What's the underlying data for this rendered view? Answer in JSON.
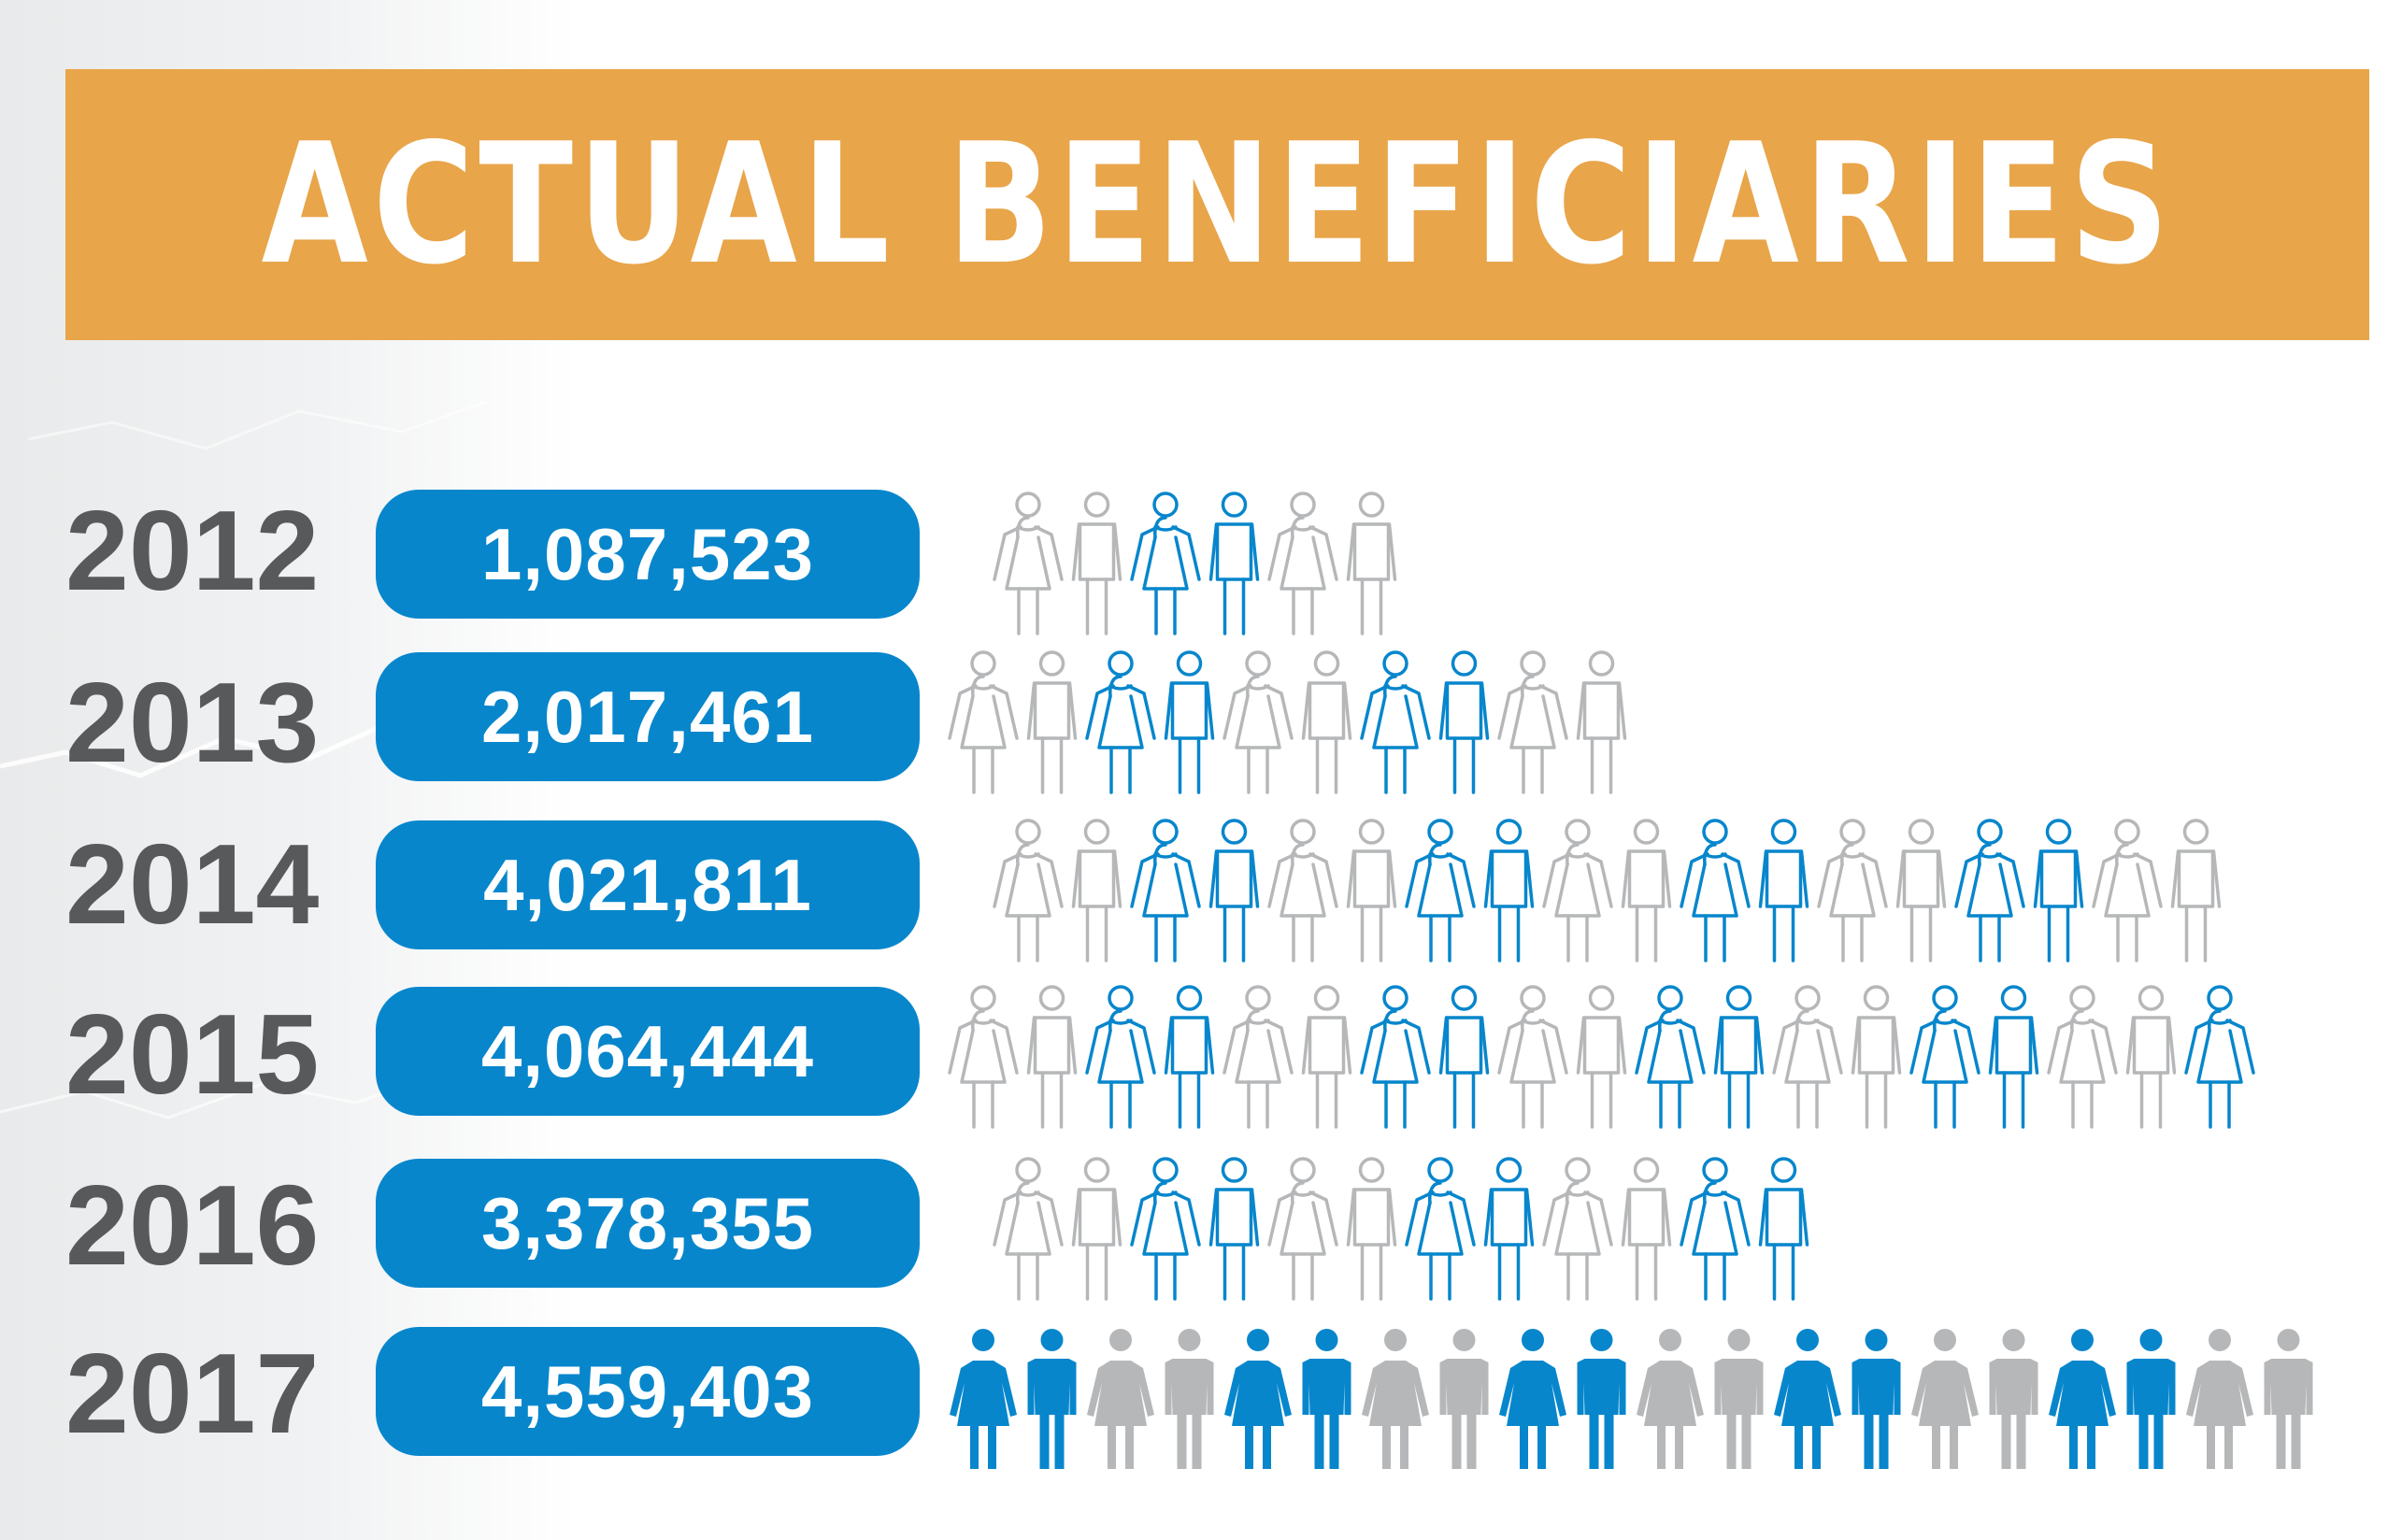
{
  "title": "ACTUAL BENEFICIARIES",
  "colors": {
    "banner": "#e8a54a",
    "accent_blue": "#0786cc",
    "icon_gray": "#b6b7b9",
    "year_text": "#58595b"
  },
  "rows": [
    {
      "year": "2012",
      "value": "1,087,523"
    },
    {
      "year": "2013",
      "value": "2,017,461"
    },
    {
      "year": "2014",
      "value": "4,021,811"
    },
    {
      "year": "2015",
      "value": "4,064,444"
    },
    {
      "year": "2016",
      "value": "3,378,355"
    },
    {
      "year": "2017",
      "value": "4,559,403"
    }
  ],
  "chart_data": {
    "type": "bar",
    "title": "ACTUAL BENEFICIARIES",
    "categories": [
      "2012",
      "2013",
      "2014",
      "2015",
      "2016",
      "2017"
    ],
    "values": [
      1087523,
      2017461,
      4021811,
      4064444,
      3378355,
      4559403
    ],
    "icons_per_row": [
      6,
      10,
      18,
      19,
      12,
      20
    ],
    "icon_color_pattern": [
      [
        "gray",
        "gray",
        "blue",
        "blue",
        "gray",
        "gray"
      ],
      [
        "gray",
        "gray",
        "blue",
        "blue",
        "gray",
        "gray",
        "blue",
        "blue",
        "gray",
        "gray"
      ],
      [
        "gray",
        "gray",
        "blue",
        "blue",
        "gray",
        "gray",
        "blue",
        "blue",
        "gray",
        "gray",
        "blue",
        "blue",
        "gray",
        "gray",
        "blue",
        "blue",
        "gray",
        "gray"
      ],
      [
        "gray",
        "gray",
        "blue",
        "blue",
        "gray",
        "gray",
        "blue",
        "blue",
        "gray",
        "gray",
        "blue",
        "blue",
        "gray",
        "gray",
        "blue",
        "blue",
        "gray",
        "gray",
        "blue"
      ],
      [
        "gray",
        "gray",
        "blue",
        "blue",
        "gray",
        "gray",
        "blue",
        "blue",
        "gray",
        "gray",
        "blue",
        "blue"
      ],
      [
        "blue",
        "blue",
        "gray",
        "gray",
        "blue",
        "blue",
        "gray",
        "gray",
        "blue",
        "blue",
        "gray",
        "gray",
        "blue",
        "blue",
        "gray",
        "gray",
        "blue",
        "blue",
        "gray",
        "gray"
      ]
    ],
    "icon_gender_pattern": [
      "female",
      "male"
    ],
    "icon_style": {
      "outline_rows": [
        "2012",
        "2013",
        "2014",
        "2015",
        "2016"
      ],
      "filled_rows": [
        "2017"
      ]
    },
    "legend": "none",
    "grid": false
  }
}
